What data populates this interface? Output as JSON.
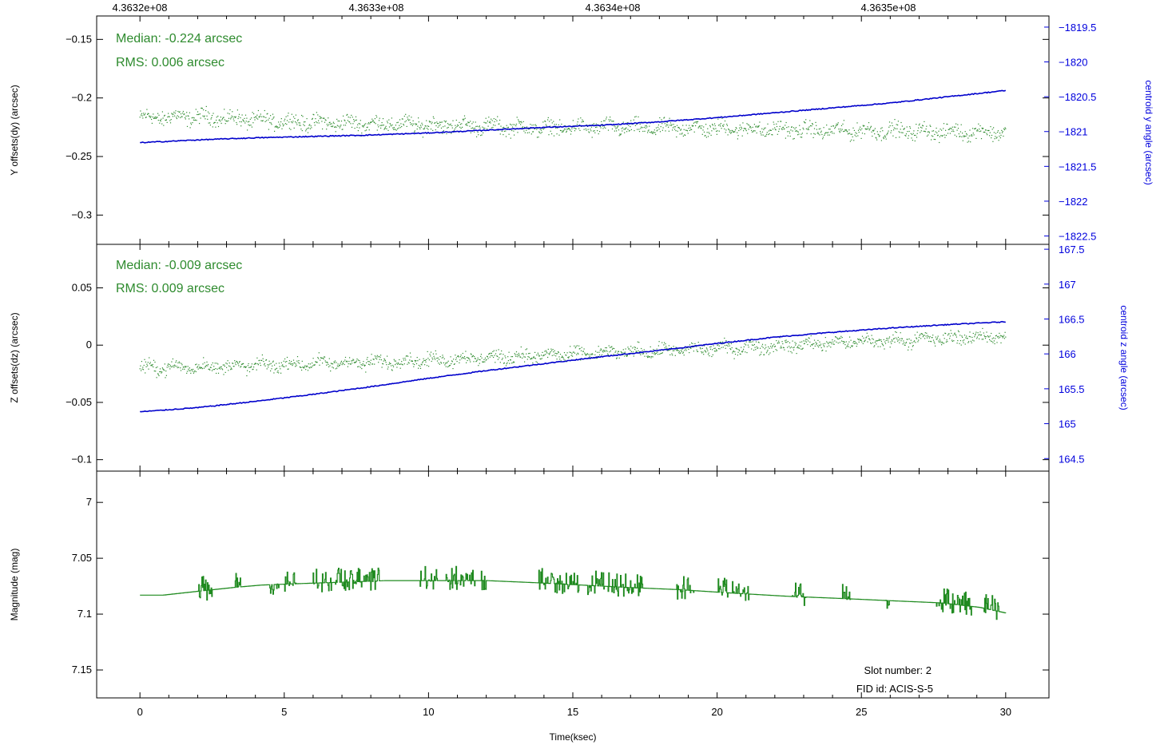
{
  "colors": {
    "offsets": "#2e8b2e",
    "centroid": "#0000cc",
    "magnitude": "#1f8a1f",
    "right_axis": "#0000dd",
    "frame": "#000000"
  },
  "chart_data": [
    {
      "type": "scatter",
      "panel": "y-offsets",
      "ylabel": "Y offsets(dy) (arcsec)",
      "y2label": "centroid y angle (arcsec)",
      "xlim": [
        -1.5,
        31.5
      ],
      "ylim": [
        -0.325,
        -0.13
      ],
      "y2lim": [
        -1822.62,
        -1819.34
      ],
      "yticks": [
        -0.15,
        -0.2,
        -0.25,
        -0.3
      ],
      "y2ticks": [
        -1819.5,
        -1820,
        -1820.5,
        -1821,
        -1821.5,
        -1822,
        -1822.5
      ],
      "top_xticks": [
        "4.3632e+08",
        "4.3633e+08",
        "4.3634e+08",
        "4.3635e+08"
      ],
      "annotations": [
        "Median: -0.224 arcsec",
        "RMS: 0.006 arcsec"
      ],
      "series": [
        {
          "name": "dy",
          "axis": "left",
          "style": "dots",
          "x": [
            0,
            2,
            4,
            6,
            8,
            10,
            12,
            14,
            16,
            18,
            20,
            22,
            24,
            26,
            28,
            30
          ],
          "y": [
            -0.217,
            -0.216,
            -0.219,
            -0.221,
            -0.222,
            -0.223,
            -0.224,
            -0.226,
            -0.225,
            -0.226,
            -0.226,
            -0.227,
            -0.228,
            -0.228,
            -0.229,
            -0.229
          ]
        },
        {
          "name": "centroid y angle",
          "axis": "right",
          "style": "line",
          "x": [
            0,
            2,
            4,
            6,
            8,
            10,
            12,
            14,
            16,
            18,
            20,
            22,
            24,
            26,
            28,
            30
          ],
          "y": [
            -1821.16,
            -1821.12,
            -1821.09,
            -1821.07,
            -1821.05,
            -1821.02,
            -1820.98,
            -1820.94,
            -1820.91,
            -1820.86,
            -1820.8,
            -1820.73,
            -1820.66,
            -1820.59,
            -1820.5,
            -1820.41
          ]
        }
      ]
    },
    {
      "type": "scatter",
      "panel": "z-offsets",
      "ylabel": "Z offsets(dz) (arcsec)",
      "y2label": "centroid z angle (arcsec)",
      "xlim": [
        -1.5,
        31.5
      ],
      "ylim": [
        -0.11,
        0.088
      ],
      "y2lim": [
        164.32,
        167.57
      ],
      "yticks": [
        0.05,
        0,
        -0.05,
        -0.1
      ],
      "y2ticks": [
        167.5,
        167,
        166.5,
        166,
        165.5,
        165,
        164.5
      ],
      "annotations": [
        "Median: -0.009 arcsec",
        "RMS: 0.009 arcsec"
      ],
      "series": [
        {
          "name": "dz",
          "axis": "left",
          "style": "dots",
          "x": [
            0,
            2,
            4,
            6,
            8,
            10,
            12,
            14,
            16,
            18,
            20,
            22,
            24,
            26,
            28,
            30
          ],
          "y": [
            -0.02,
            -0.019,
            -0.018,
            -0.016,
            -0.015,
            -0.013,
            -0.011,
            -0.009,
            -0.007,
            -0.005,
            -0.003,
            -0.001,
            0.002,
            0.004,
            0.006,
            0.008
          ]
        },
        {
          "name": "centroid z angle",
          "axis": "right",
          "style": "line",
          "x": [
            0,
            2,
            4,
            6,
            8,
            10,
            12,
            14,
            16,
            18,
            20,
            22,
            24,
            26,
            28,
            30
          ],
          "y": [
            165.17,
            165.23,
            165.32,
            165.42,
            165.53,
            165.65,
            165.76,
            165.86,
            165.96,
            166.05,
            166.15,
            166.24,
            166.31,
            166.37,
            166.42,
            166.46
          ]
        }
      ]
    },
    {
      "type": "line",
      "panel": "magnitude",
      "ylabel": "Magnitude (mag)",
      "xlabel": "Time(ksec)",
      "xlim": [
        -1.5,
        31.5
      ],
      "ylim": [
        7.175,
        6.972
      ],
      "yticks": [
        7,
        7.05,
        7.1,
        7.15
      ],
      "xticks": [
        0,
        5,
        10,
        15,
        20,
        25,
        30
      ],
      "annotations": [
        "Slot number: 2",
        "FID id: ACIS-S-5"
      ],
      "series": [
        {
          "name": "magnitude",
          "axis": "left",
          "style": "step",
          "x": [
            0,
            0.8,
            1.5,
            2.2,
            3.3,
            4.2,
            5.2,
            6.3,
            7.5,
            8.5,
            10.2,
            12.0,
            13.8,
            15.3,
            16.8,
            18.6,
            20.4,
            22.4,
            24.3,
            26.0,
            27.8,
            29.1,
            30.0
          ],
          "y": [
            7.083,
            7.083,
            7.081,
            7.079,
            7.076,
            7.074,
            7.073,
            7.072,
            7.071,
            7.07,
            7.07,
            7.07,
            7.072,
            7.074,
            7.076,
            7.078,
            7.081,
            7.084,
            7.086,
            7.088,
            7.09,
            7.094,
            7.099
          ]
        }
      ]
    }
  ]
}
